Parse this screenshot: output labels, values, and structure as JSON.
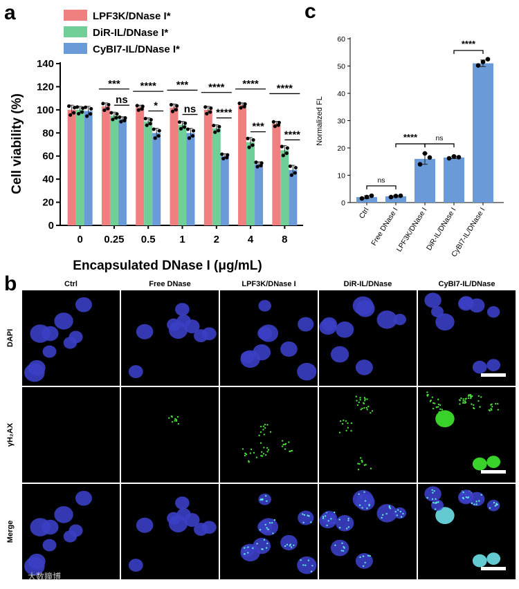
{
  "panel_labels": {
    "a": "a",
    "b": "b",
    "c": "c"
  },
  "chart_data": [
    {
      "type": "bar",
      "panel": "a",
      "categories": [
        "0",
        "0.25",
        "0.5",
        "1",
        "2",
        "4",
        "8"
      ],
      "xlabel": "Encapsulated DNase I (μg/mL)",
      "ylabel": "Cell viability (%)",
      "ylim": [
        0,
        140
      ],
      "yticks": [
        "0",
        "20",
        "40",
        "60",
        "80",
        "100",
        "120",
        "140"
      ],
      "legend_position": "top-left",
      "series": [
        {
          "name": "LPF3K/DNase I*",
          "color": "#f08080",
          "values": [
            100,
            103,
            102,
            102,
            100,
            104,
            88
          ],
          "errors": [
            4,
            3,
            2,
            3,
            3,
            2,
            2
          ]
        },
        {
          "name": "DiR-IL/DNase I*",
          "color": "#6fcf97",
          "values": [
            100,
            95,
            90,
            87,
            84,
            72,
            65
          ],
          "errors": [
            3,
            3,
            3,
            3,
            3,
            4,
            4
          ]
        },
        {
          "name": "CyBI7-IL/DNase I*",
          "color": "#6a9bd8",
          "values": [
            99,
            92,
            80,
            80,
            60,
            53,
            48
          ],
          "errors": [
            4,
            2,
            4,
            4,
            2,
            2,
            4
          ]
        }
      ],
      "significance": [
        {
          "label": "***",
          "group": 1,
          "pair": "1-2",
          "level": 1
        },
        {
          "label": "ns",
          "group": 1,
          "pair": "2-3",
          "level": 0
        },
        {
          "label": "****",
          "group": 2,
          "pair": "1-2",
          "level": 1
        },
        {
          "label": "*",
          "group": 2,
          "pair": "2-3",
          "level": 0
        },
        {
          "label": "***",
          "group": 3,
          "pair": "1-2",
          "level": 1
        },
        {
          "label": "ns",
          "group": 3,
          "pair": "2-3",
          "level": 0
        },
        {
          "label": "****",
          "group": 4,
          "pair": "1-2",
          "level": 1
        },
        {
          "label": "****",
          "group": 4,
          "pair": "2-3",
          "level": 0
        },
        {
          "label": "****",
          "group": 5,
          "pair": "1-2",
          "level": 1
        },
        {
          "label": "***",
          "group": 5,
          "pair": "2-3",
          "level": 0
        },
        {
          "label": "****",
          "group": 6,
          "pair": "1-2",
          "level": 1
        },
        {
          "label": "****",
          "group": 6,
          "pair": "2-3",
          "level": 0
        }
      ]
    },
    {
      "type": "bar",
      "panel": "c",
      "categories": [
        "Ctrl",
        "Free DNase I",
        "LPF3K/DNase I",
        "DiR-IL/DNase I",
        "CyBI7-IL/DNase I"
      ],
      "ylabel": "Normalized FL",
      "xlabel": "",
      "ylim": [
        0,
        60
      ],
      "yticks": [
        "0",
        "10",
        "20",
        "30",
        "40",
        "50",
        "60"
      ],
      "color": "#6a9bd8",
      "values": [
        2.0,
        2.3,
        16.0,
        16.5,
        51.0
      ],
      "points": [
        [
          1.5,
          2.5,
          2.0
        ],
        [
          2.0,
          2.5,
          2.4
        ],
        [
          14.0,
          16.5,
          18.0
        ],
        [
          16.2,
          16.6,
          16.9
        ],
        [
          50.2,
          52.5,
          51.5
        ]
      ],
      "errors": [
        0.5,
        0.3,
        2.0,
        0.4,
        1.2
      ],
      "significance": [
        {
          "label": "ns",
          "from": 0,
          "to": 1
        },
        {
          "label": "****",
          "from": 1,
          "to": 2
        },
        {
          "label": "ns",
          "from": 2,
          "to": 3
        },
        {
          "label": "****",
          "from": 3,
          "to": 4
        }
      ]
    }
  ],
  "microscopy": {
    "columns": [
      "Ctrl",
      "Free DNase",
      "LPF3K/DNase I",
      "DiR-IL/DNase",
      "CyBI7-IL/DNase"
    ],
    "rows": [
      "DAPI",
      "γH₂AX",
      "Merge"
    ]
  },
  "watermark": "大数瞳博"
}
